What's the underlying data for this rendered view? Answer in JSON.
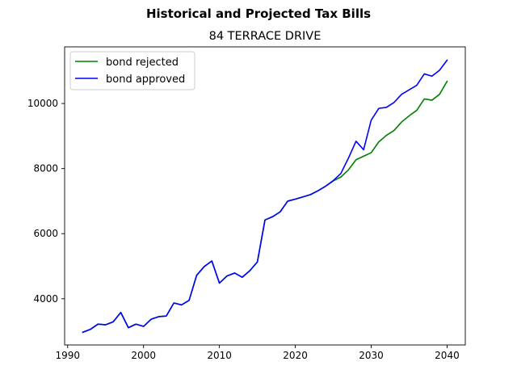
{
  "chart_data": {
    "type": "line",
    "suptitle": "Historical and Projected Tax Bills",
    "title": "84 TERRACE DRIVE",
    "xlabel": "",
    "ylabel": "",
    "xlim": [
      1989.6,
      2042.4
    ],
    "ylim": [
      2580,
      11740
    ],
    "xticks": [
      1990,
      2000,
      2010,
      2020,
      2030,
      2040
    ],
    "yticks": [
      4000,
      6000,
      8000,
      10000
    ],
    "grid": false,
    "legend_position": "upper-left",
    "series": [
      {
        "name": "bond rejected",
        "color": "#008000",
        "x": [
          1992,
          1993,
          1994,
          1995,
          1996,
          1997,
          1998,
          1999,
          2000,
          2001,
          2002,
          2003,
          2004,
          2005,
          2006,
          2007,
          2008,
          2009,
          2010,
          2011,
          2012,
          2013,
          2014,
          2015,
          2016,
          2017,
          2018,
          2019,
          2020,
          2021,
          2022,
          2023,
          2024,
          2025,
          2026,
          2027,
          2028,
          2029,
          2030,
          2031,
          2032,
          2033,
          2034,
          2035,
          2036,
          2037,
          2038,
          2039,
          2040
        ],
        "y": [
          2970,
          3060,
          3220,
          3200,
          3290,
          3580,
          3110,
          3220,
          3150,
          3370,
          3450,
          3470,
          3870,
          3810,
          3950,
          4720,
          4990,
          5160,
          4480,
          4700,
          4790,
          4660,
          4860,
          5130,
          6420,
          6520,
          6670,
          7000,
          7060,
          7130,
          7200,
          7320,
          7460,
          7620,
          7740,
          7960,
          8270,
          8380,
          8490,
          8820,
          9020,
          9170,
          9430,
          9620,
          9790,
          10140,
          10100,
          10280,
          10680
        ]
      },
      {
        "name": "bond approved",
        "color": "#0000ff",
        "x": [
          1992,
          1993,
          1994,
          1995,
          1996,
          1997,
          1998,
          1999,
          2000,
          2001,
          2002,
          2003,
          2004,
          2005,
          2006,
          2007,
          2008,
          2009,
          2010,
          2011,
          2012,
          2013,
          2014,
          2015,
          2016,
          2017,
          2018,
          2019,
          2020,
          2021,
          2022,
          2023,
          2024,
          2025,
          2026,
          2027,
          2028,
          2029,
          2030,
          2031,
          2032,
          2033,
          2034,
          2035,
          2036,
          2037,
          2038,
          2039,
          2040
        ],
        "y": [
          2970,
          3060,
          3220,
          3200,
          3290,
          3580,
          3110,
          3220,
          3150,
          3370,
          3450,
          3470,
          3870,
          3810,
          3950,
          4720,
          4990,
          5160,
          4480,
          4700,
          4790,
          4660,
          4860,
          5130,
          6420,
          6520,
          6670,
          7000,
          7060,
          7130,
          7200,
          7320,
          7460,
          7630,
          7850,
          8320,
          8840,
          8580,
          9490,
          9850,
          9880,
          10030,
          10280,
          10420,
          10560,
          10910,
          10840,
          11020,
          11330
        ]
      }
    ]
  }
}
